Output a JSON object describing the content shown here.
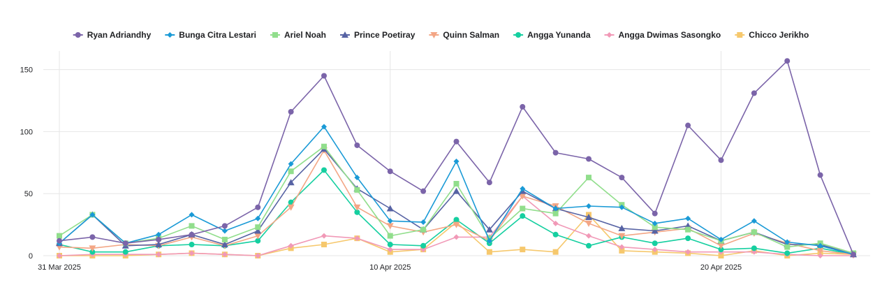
{
  "chart_data": {
    "type": "line",
    "title": "",
    "xlabel": "",
    "ylabel": "",
    "ylim": [
      0,
      165
    ],
    "y_ticks": [
      0,
      50,
      100,
      150
    ],
    "grid": true,
    "legend_position": "top",
    "x": [
      "2025-03-31",
      "2025-04-01",
      "2025-04-02",
      "2025-04-03",
      "2025-04-04",
      "2025-04-05",
      "2025-04-06",
      "2025-04-07",
      "2025-04-08",
      "2025-04-09",
      "2025-04-10",
      "2025-04-11",
      "2025-04-12",
      "2025-04-13",
      "2025-04-14",
      "2025-04-15",
      "2025-04-16",
      "2025-04-17",
      "2025-04-18",
      "2025-04-19",
      "2025-04-20",
      "2025-04-21",
      "2025-04-22",
      "2025-04-23",
      "2025-04-24"
    ],
    "x_tick_labels": [
      {
        "at": "2025-03-31",
        "label": "31 Mar 2025"
      },
      {
        "at": "2025-04-10",
        "label": "10 Apr 2025"
      },
      {
        "at": "2025-04-20",
        "label": "20 Apr 2025"
      }
    ],
    "series": [
      {
        "name": "Ryan Adriandhy",
        "color": "#7b64a9",
        "marker": "circle",
        "values": [
          12,
          15,
          10,
          13,
          17,
          24,
          39,
          116,
          145,
          89,
          68,
          52,
          92,
          59,
          120,
          83,
          78,
          63,
          34,
          105,
          77,
          131,
          157,
          65,
          1
        ]
      },
      {
        "name": "Bunga Citra Lestari",
        "color": "#1a9ad6",
        "marker": "diamond",
        "values": [
          10,
          33,
          10,
          17,
          33,
          20,
          30,
          74,
          104,
          63,
          28,
          27,
          76,
          12,
          54,
          38,
          40,
          39,
          26,
          30,
          13,
          28,
          11,
          8,
          1
        ]
      },
      {
        "name": "Ariel Noah",
        "color": "#91de8c",
        "marker": "square",
        "values": [
          16,
          33,
          10,
          14,
          24,
          13,
          23,
          68,
          88,
          53,
          16,
          21,
          58,
          14,
          38,
          34,
          63,
          41,
          23,
          21,
          12,
          19,
          7,
          10,
          2
        ]
      },
      {
        "name": "Prince Poetiray",
        "color": "#5763a4",
        "marker": "triangle",
        "values": [
          10,
          33,
          8,
          9,
          17,
          9,
          20,
          59,
          86,
          54,
          38,
          21,
          52,
          21,
          52,
          38,
          31,
          22,
          20,
          24,
          12,
          19,
          9,
          9,
          1
        ]
      },
      {
        "name": "Quinn Salman",
        "color": "#f3a685",
        "marker": "triangle-down",
        "values": [
          7,
          6,
          9,
          8,
          15,
          8,
          16,
          39,
          85,
          39,
          24,
          19,
          25,
          12,
          48,
          40,
          26,
          16,
          19,
          22,
          8,
          18,
          10,
          4,
          1
        ]
      },
      {
        "name": "Angga Yunanda",
        "color": "#15cfa0",
        "marker": "circle",
        "values": [
          9,
          3,
          3,
          8,
          9,
          8,
          12,
          43,
          69,
          35,
          9,
          8,
          29,
          10,
          32,
          17,
          8,
          15,
          10,
          14,
          5,
          6,
          2,
          6,
          1
        ]
      },
      {
        "name": "Angga Dwimas Sasongko",
        "color": "#f199b7",
        "marker": "diamond",
        "values": [
          0,
          1,
          1,
          1,
          2,
          1,
          0,
          8,
          16,
          14,
          5,
          5,
          15,
          15,
          48,
          26,
          16,
          7,
          5,
          3,
          3,
          3,
          1,
          0,
          0
        ]
      },
      {
        "name": "Chicco Jerikho",
        "color": "#f6c86d",
        "marker": "square",
        "values": [
          0,
          0,
          0,
          1,
          2,
          1,
          0,
          6,
          9,
          14,
          3,
          5,
          27,
          3,
          5,
          3,
          33,
          4,
          3,
          2,
          0,
          4,
          0,
          2,
          1
        ]
      }
    ]
  }
}
